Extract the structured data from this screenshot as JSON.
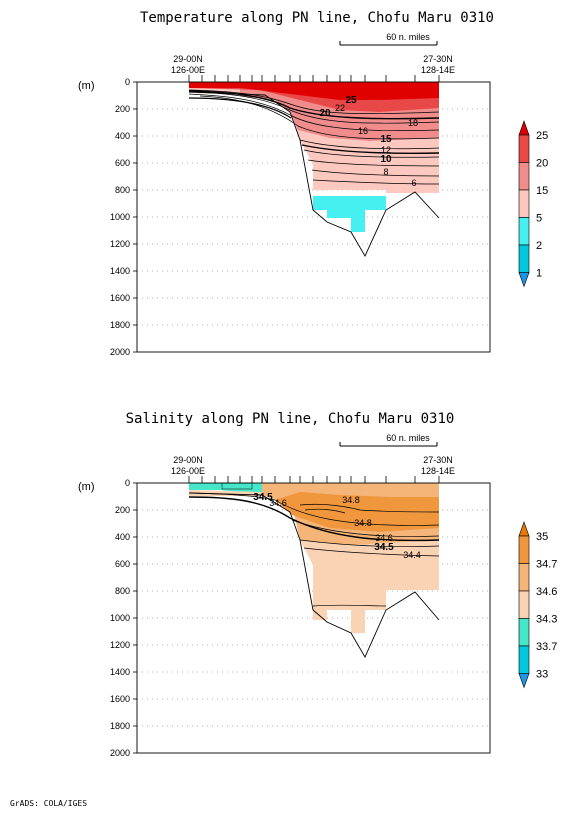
{
  "colors": {
    "temp": [
      "#1e96e6",
      "#00c8dc",
      "#46f0f0",
      "#fcc8c0",
      "#f08c8c",
      "#e84848",
      "#e00000"
    ],
    "sal": [
      "#1e96e6",
      "#00c8dc",
      "#46e6c8",
      "#fad2b4",
      "#f5b478",
      "#f0963c",
      "#e87800"
    ]
  },
  "chart_data": [
    {
      "type": "heatmap",
      "title": "Temperature along PN line, Chofu Maru 0310",
      "ylabel": "(m)",
      "ylim": [
        0,
        2000
      ],
      "yticks": [
        "0",
        "200",
        "400",
        "600",
        "800",
        "1000",
        "1200",
        "1400",
        "1600",
        "1800",
        "2000"
      ],
      "station_left": [
        "29-00N",
        "126-00E"
      ],
      "station_right": [
        "27-30N",
        "128-14E"
      ],
      "scale_label": "60 n. miles",
      "colorbar": [
        "1",
        "2",
        "5",
        "15",
        "20",
        "25"
      ],
      "contour_labels": [
        "25",
        "22",
        "20",
        "18",
        "16",
        "15",
        "12",
        "10",
        "8",
        "6"
      ]
    },
    {
      "type": "heatmap",
      "title": "Salinity along PN line, Chofu Maru 0310",
      "ylabel": "(m)",
      "ylim": [
        0,
        2000
      ],
      "yticks": [
        "0",
        "200",
        "400",
        "600",
        "800",
        "1000",
        "1200",
        "1400",
        "1600",
        "1800",
        "2000"
      ],
      "station_left": [
        "29-00N",
        "126-00E"
      ],
      "station_right": [
        "27-30N",
        "128-14E"
      ],
      "scale_label": "60 n. miles",
      "colorbar": [
        "33",
        "33.7",
        "34.3",
        "34.6",
        "34.7",
        "35"
      ],
      "contour_labels": [
        "34.5",
        "34.6",
        "34.8",
        "34.8",
        "34.6",
        "34.5",
        "34.4"
      ]
    }
  ],
  "footer": "GrADS: COLA/IGES"
}
